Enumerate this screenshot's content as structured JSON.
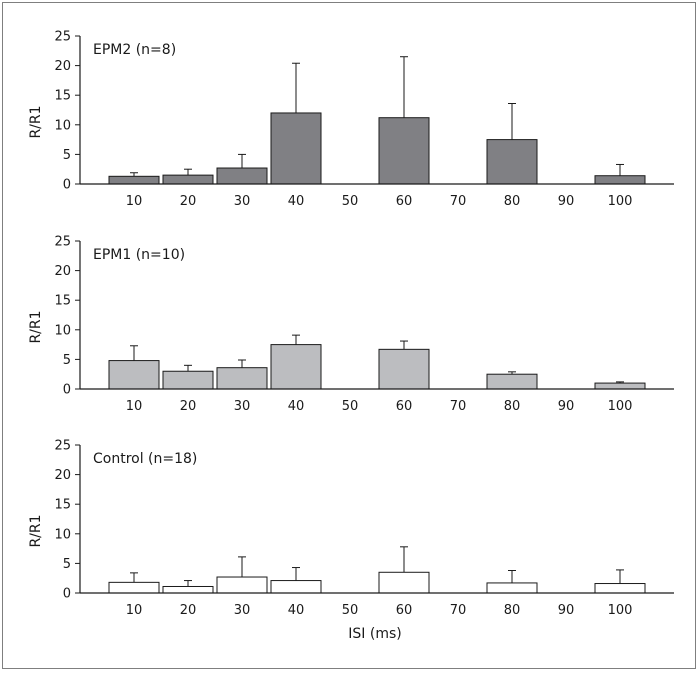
{
  "chart_data": [
    {
      "type": "bar",
      "title": "EPM2 (n=8)",
      "ylabel": "R/R1",
      "xlabel": "",
      "ylim": [
        0,
        25
      ],
      "yticks": [
        0,
        5,
        10,
        15,
        20,
        25
      ],
      "x_ticks": [
        10,
        20,
        30,
        40,
        50,
        60,
        70,
        80,
        90,
        100
      ],
      "x": [
        10,
        20,
        30,
        40,
        60,
        80,
        100
      ],
      "values": [
        1.3,
        1.5,
        2.7,
        12.0,
        11.2,
        7.5,
        1.4
      ],
      "error": [
        0.6,
        1.0,
        2.3,
        8.4,
        10.3,
        6.1,
        1.9
      ],
      "fill": "#808084"
    },
    {
      "type": "bar",
      "title": "EPM1 (n=10)",
      "ylabel": "R/R1",
      "xlabel": "",
      "ylim": [
        0,
        25
      ],
      "yticks": [
        0,
        5,
        10,
        15,
        20,
        25
      ],
      "x_ticks": [
        10,
        20,
        30,
        40,
        50,
        60,
        70,
        80,
        90,
        100
      ],
      "x": [
        10,
        20,
        30,
        40,
        60,
        80,
        100
      ],
      "values": [
        4.8,
        3.0,
        3.6,
        7.5,
        6.7,
        2.5,
        1.0
      ],
      "error": [
        2.5,
        1.0,
        1.3,
        1.6,
        1.4,
        0.4,
        0.2
      ],
      "fill": "#bcbdc0"
    },
    {
      "type": "bar",
      "title": "Control (n=18)",
      "ylabel": "R/R1",
      "xlabel": "ISI (ms)",
      "ylim": [
        0,
        25
      ],
      "yticks": [
        0,
        5,
        10,
        15,
        20,
        25
      ],
      "x_ticks": [
        10,
        20,
        30,
        40,
        50,
        60,
        70,
        80,
        90,
        100
      ],
      "x": [
        10,
        20,
        30,
        40,
        60,
        80,
        100
      ],
      "values": [
        1.8,
        1.1,
        2.7,
        2.1,
        3.5,
        1.7,
        1.6
      ],
      "error": [
        1.6,
        1.0,
        3.4,
        2.2,
        4.3,
        2.1,
        2.3
      ],
      "fill": "#ffffff"
    }
  ]
}
